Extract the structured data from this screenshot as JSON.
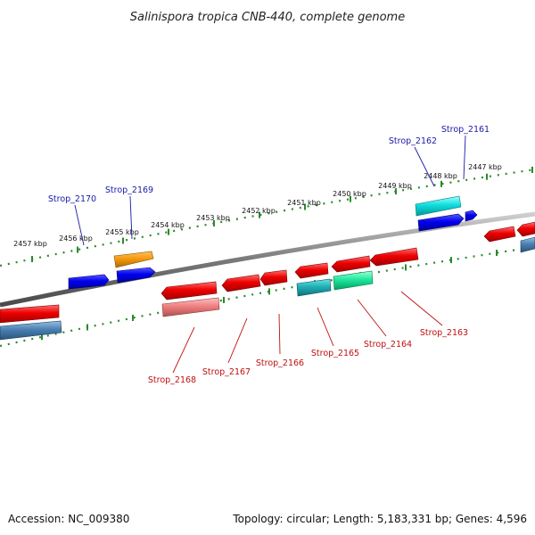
{
  "title": "Salinispora tropica CNB-440, complete genome",
  "footer": {
    "accession": "Accession: NC_009380",
    "summary": "Topology: circular; Length: 5,183,331 bp; Genes: 4,596"
  },
  "colors": {
    "backbone": "#8a8a8a",
    "tick": "#2a8a2a",
    "forward_label": "#1a1aa8",
    "reverse_label": "#c01010"
  },
  "tick_labels": [
    "2457 kbp",
    "2456 kbp",
    "2455 kbp",
    "2454 kbp",
    "2453 kbp",
    "2452 kbp",
    "2451 kbp",
    "2450 kbp",
    "2449 kbp",
    "2448 kbp",
    "2447 kbp"
  ],
  "forward_labels": [
    "Strop_2170",
    "Strop_2169",
    "Strop_2162",
    "Strop_2161"
  ],
  "reverse_labels": [
    "Strop_2168",
    "Strop_2167",
    "Strop_2166",
    "Strop_2165",
    "Strop_2164",
    "Strop_2163"
  ]
}
